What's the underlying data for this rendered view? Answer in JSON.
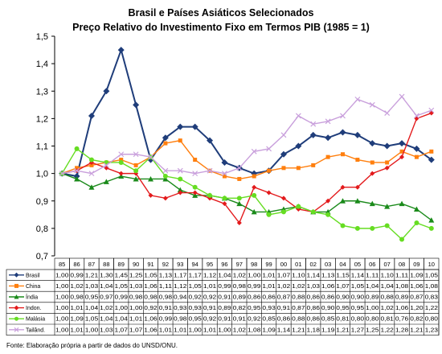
{
  "chart_data": {
    "type": "line",
    "title": "Brasil e Países Asiáticos Selecionados",
    "subtitle": "Preço Relativo do Investimento Fixo em Termos PIB (1985 = 1)",
    "ylim": [
      0.7,
      1.5
    ],
    "yticks": [
      "0,7",
      "0,8",
      "0,9",
      "1,0",
      "1,1",
      "1,2",
      "1,3",
      "1,4",
      "1,5"
    ],
    "categories": [
      "85",
      "86",
      "87",
      "88",
      "89",
      "90",
      "91",
      "92",
      "93",
      "94",
      "95",
      "96",
      "97",
      "98",
      "99",
      "00",
      "01",
      "02",
      "03",
      "04",
      "05",
      "06",
      "07",
      "08",
      "09",
      "10"
    ],
    "grid": false,
    "legend": "data-table",
    "series": [
      {
        "name": "Brasil",
        "color": "#1f3d7a",
        "marker": "diamond",
        "values": [
          1.0,
          0.99,
          1.21,
          1.3,
          1.45,
          1.25,
          1.05,
          1.13,
          1.17,
          1.17,
          1.12,
          1.04,
          1.02,
          1.0,
          1.01,
          1.07,
          1.1,
          1.14,
          1.13,
          1.15,
          1.14,
          1.11,
          1.1,
          1.11,
          1.09,
          1.05
        ],
        "labels": [
          "1,00",
          "0,99",
          "1,21",
          "1,30",
          "1,45",
          "1,25",
          "1,05",
          "1,13",
          "1,17",
          "1,17",
          "1,12",
          "1,04",
          "1,02",
          "1,00",
          "1,01",
          "1,07",
          "1,10",
          "1,14",
          "1,13",
          "1,15",
          "1,14",
          "1,11",
          "1,10",
          "1,11",
          "1,09",
          "1,05"
        ]
      },
      {
        "name": "China",
        "color": "#ff7f0e",
        "marker": "square",
        "values": [
          1.0,
          1.02,
          1.03,
          1.04,
          1.05,
          1.03,
          1.06,
          1.11,
          1.12,
          1.05,
          1.01,
          0.99,
          0.98,
          0.99,
          1.01,
          1.02,
          1.02,
          1.03,
          1.06,
          1.07,
          1.05,
          1.04,
          1.04,
          1.08,
          1.06,
          1.08
        ],
        "labels": [
          "1,00",
          "1,02",
          "1,03",
          "1,04",
          "1,05",
          "1,03",
          "1,06",
          "1,11",
          "1,12",
          "1,05",
          "1,01",
          "0,99",
          "0,98",
          "0,99",
          "1,01",
          "1,02",
          "1,02",
          "1,03",
          "1,06",
          "1,07",
          "1,05",
          "1,04",
          "1,04",
          "1,08",
          "1,06",
          "1,08"
        ]
      },
      {
        "name": "Índia",
        "color": "#1a8a1a",
        "marker": "triangle",
        "values": [
          1.0,
          0.98,
          0.95,
          0.97,
          0.99,
          0.98,
          0.98,
          0.98,
          0.94,
          0.92,
          0.92,
          0.91,
          0.89,
          0.86,
          0.86,
          0.87,
          0.88,
          0.86,
          0.86,
          0.9,
          0.9,
          0.89,
          0.88,
          0.89,
          0.87,
          0.83
        ],
        "labels": [
          "1,00",
          "0,98",
          "0,95",
          "0,97",
          "0,99",
          "0,98",
          "0,98",
          "0,98",
          "0,94",
          "0,92",
          "0,92",
          "0,91",
          "0,89",
          "0,86",
          "0,86",
          "0,87",
          "0,88",
          "0,86",
          "0,86",
          "0,90",
          "0,90",
          "0,89",
          "0,88",
          "0,89",
          "0,87",
          "0,83"
        ]
      },
      {
        "name": "Indon.",
        "color": "#e31a1c",
        "marker": "diamond",
        "values": [
          1.0,
          1.01,
          1.04,
          1.02,
          1.0,
          1.0,
          0.92,
          0.91,
          0.93,
          0.93,
          0.91,
          0.89,
          0.82,
          0.95,
          0.93,
          0.91,
          0.87,
          0.86,
          0.9,
          0.95,
          0.95,
          1.0,
          1.02,
          1.06,
          1.2,
          1.22
        ],
        "labels": [
          "1,00",
          "1,01",
          "1,04",
          "1,02",
          "1,00",
          "1,00",
          "0,92",
          "0,91",
          "0,93",
          "0,93",
          "0,91",
          "0,89",
          "0,82",
          "0,95",
          "0,93",
          "0,91",
          "0,87",
          "0,86",
          "0,90",
          "0,95",
          "0,95",
          "1,00",
          "1,02",
          "1,06",
          "1,20",
          "1,22"
        ]
      },
      {
        "name": "Malásia",
        "color": "#66dd22",
        "marker": "circle",
        "values": [
          1.0,
          1.09,
          1.05,
          1.04,
          1.04,
          1.01,
          1.06,
          0.99,
          0.98,
          0.95,
          0.92,
          0.91,
          0.91,
          0.92,
          0.85,
          0.86,
          0.88,
          0.86,
          0.85,
          0.81,
          0.8,
          0.8,
          0.81,
          0.76,
          0.82,
          0.8
        ],
        "labels": [
          "1,00",
          "1,09",
          "1,05",
          "1,04",
          "1,04",
          "1,01",
          "1,06",
          "0,99",
          "0,98",
          "0,95",
          "0,92",
          "0,91",
          "0,91",
          "0,92",
          "0,85",
          "0,86",
          "0,88",
          "0,86",
          "0,85",
          "0,81",
          "0,80",
          "0,80",
          "0,81",
          "0,76",
          "0,82",
          "0,80"
        ]
      },
      {
        "name": "Tailând.",
        "color": "#c9a0dc",
        "marker": "x",
        "values": [
          1.0,
          1.01,
          1.0,
          1.03,
          1.07,
          1.07,
          1.06,
          1.01,
          1.01,
          1.0,
          1.01,
          1.0,
          1.02,
          1.08,
          1.09,
          1.14,
          1.21,
          1.18,
          1.19,
          1.21,
          1.27,
          1.25,
          1.22,
          1.28,
          1.21,
          1.23
        ],
        "labels": [
          "1,00",
          "1,01",
          "1,00",
          "1,03",
          "1,07",
          "1,07",
          "1,06",
          "1,01",
          "1,01",
          "1,00",
          "1,01",
          "1,00",
          "1,02",
          "1,08",
          "1,09",
          "1,14",
          "1,21",
          "1,18",
          "1,19",
          "1,21",
          "1,27",
          "1,25",
          "1,22",
          "1,28",
          "1,21",
          "1,23"
        ]
      }
    ],
    "source": "Fonte: Elaboração própria a partir de dados do UNSD/ONU."
  }
}
